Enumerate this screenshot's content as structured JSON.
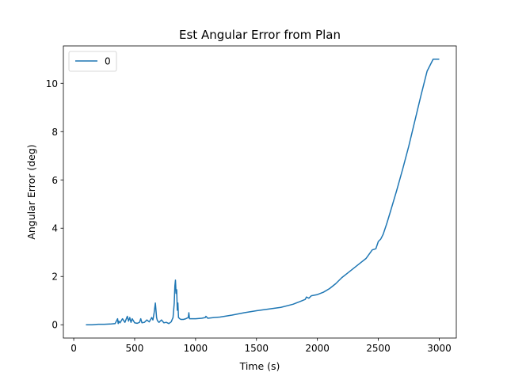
{
  "chart_data": {
    "type": "line",
    "title": "Est Angular Error from Plan",
    "xlabel": "Time (s)",
    "ylabel": "Angular Error (deg)",
    "xlim": [
      -85,
      3140
    ],
    "ylim": [
      -0.55,
      11.55
    ],
    "xticks": [
      0,
      500,
      1000,
      1500,
      2000,
      2500,
      3000
    ],
    "yticks": [
      0,
      2,
      4,
      6,
      8,
      10
    ],
    "grid": false,
    "legend": {
      "position": "upper-left",
      "entries": [
        "0"
      ]
    },
    "colors": {
      "series": "#1f77b4"
    },
    "series": [
      {
        "name": "0",
        "x": [
          100,
          150,
          200,
          250,
          300,
          340,
          360,
          365,
          370,
          380,
          400,
          420,
          440,
          450,
          460,
          470,
          480,
          500,
          520,
          540,
          550,
          560,
          580,
          600,
          620,
          640,
          650,
          660,
          670,
          675,
          680,
          685,
          690,
          700,
          720,
          740,
          760,
          780,
          800,
          815,
          825,
          830,
          835,
          840,
          845,
          850,
          855,
          860,
          870,
          880,
          900,
          920,
          940,
          945,
          950,
          960,
          1000,
          1050,
          1080,
          1085,
          1100,
          1150,
          1200,
          1300,
          1400,
          1500,
          1600,
          1700,
          1800,
          1850,
          1900,
          1910,
          1930,
          1950,
          2000,
          2050,
          2100,
          2150,
          2200,
          2250,
          2300,
          2350,
          2400,
          2450,
          2480,
          2500,
          2510,
          2520,
          2530,
          2540,
          2550,
          2570,
          2600,
          2650,
          2700,
          2750,
          2800,
          2850,
          2900,
          2950,
          3000
        ],
        "values": [
          0.0,
          0.0,
          0.02,
          0.02,
          0.03,
          0.05,
          0.25,
          0.05,
          0.15,
          0.08,
          0.25,
          0.1,
          0.35,
          0.15,
          0.3,
          0.1,
          0.25,
          0.08,
          0.06,
          0.1,
          0.25,
          0.08,
          0.1,
          0.2,
          0.12,
          0.3,
          0.2,
          0.5,
          0.9,
          0.6,
          0.3,
          0.2,
          0.15,
          0.1,
          0.2,
          0.08,
          0.1,
          0.05,
          0.12,
          0.3,
          0.9,
          1.6,
          1.85,
          1.3,
          1.45,
          0.6,
          0.9,
          0.3,
          0.25,
          0.22,
          0.22,
          0.25,
          0.3,
          0.5,
          0.25,
          0.25,
          0.25,
          0.27,
          0.3,
          0.35,
          0.27,
          0.3,
          0.32,
          0.4,
          0.5,
          0.58,
          0.65,
          0.72,
          0.85,
          0.95,
          1.05,
          1.15,
          1.1,
          1.2,
          1.25,
          1.35,
          1.5,
          1.7,
          1.95,
          2.15,
          2.35,
          2.55,
          2.75,
          3.1,
          3.15,
          3.45,
          3.5,
          3.55,
          3.65,
          3.75,
          3.9,
          4.2,
          4.7,
          5.55,
          6.45,
          7.4,
          8.45,
          9.5,
          10.5,
          11.0,
          11.0
        ]
      }
    ]
  }
}
